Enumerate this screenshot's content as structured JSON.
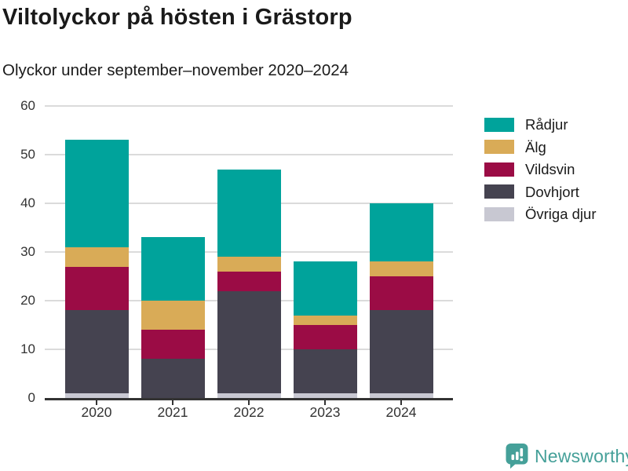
{
  "header": {
    "title": "Viltolyckor på hösten i Grästorp",
    "subtitle": "Olyckor under september–november 2020–2024"
  },
  "chart_data": {
    "type": "bar",
    "stacked": true,
    "title": "Viltolyckor på hösten i Grästorp",
    "subtitle": "Olyckor under september–november 2020–2024",
    "categories": [
      "2020",
      "2021",
      "2022",
      "2023",
      "2024"
    ],
    "series": [
      {
        "name": "Rådjur",
        "color": "#00a39b",
        "values": [
          22,
          13,
          18,
          11,
          12
        ]
      },
      {
        "name": "Älg",
        "color": "#d9ab57",
        "values": [
          4,
          6,
          3,
          2,
          3
        ]
      },
      {
        "name": "Vildsvin",
        "color": "#9b0c45",
        "values": [
          9,
          6,
          4,
          5,
          7
        ]
      },
      {
        "name": "Dovhjort",
        "color": "#454350",
        "values": [
          17,
          8,
          21,
          9,
          17
        ]
      },
      {
        "name": "Övriga djur",
        "color": "#c8c8d2",
        "values": [
          1,
          0,
          1,
          1,
          1
        ]
      }
    ],
    "totals": [
      53,
      33,
      47,
      28,
      40
    ],
    "ylim": [
      0,
      60
    ],
    "yticks": [
      0,
      10,
      20,
      30,
      40,
      50,
      60
    ],
    "xlabel": "",
    "ylabel": "",
    "grid": "horizontal",
    "legend_position": "right",
    "colors": {
      "axis": "#333333",
      "gridline": "#dbdbdb",
      "text": "#1a1a1a",
      "brand_teal": "#45a099"
    }
  },
  "footer": {
    "brand": "Newsworthy"
  }
}
